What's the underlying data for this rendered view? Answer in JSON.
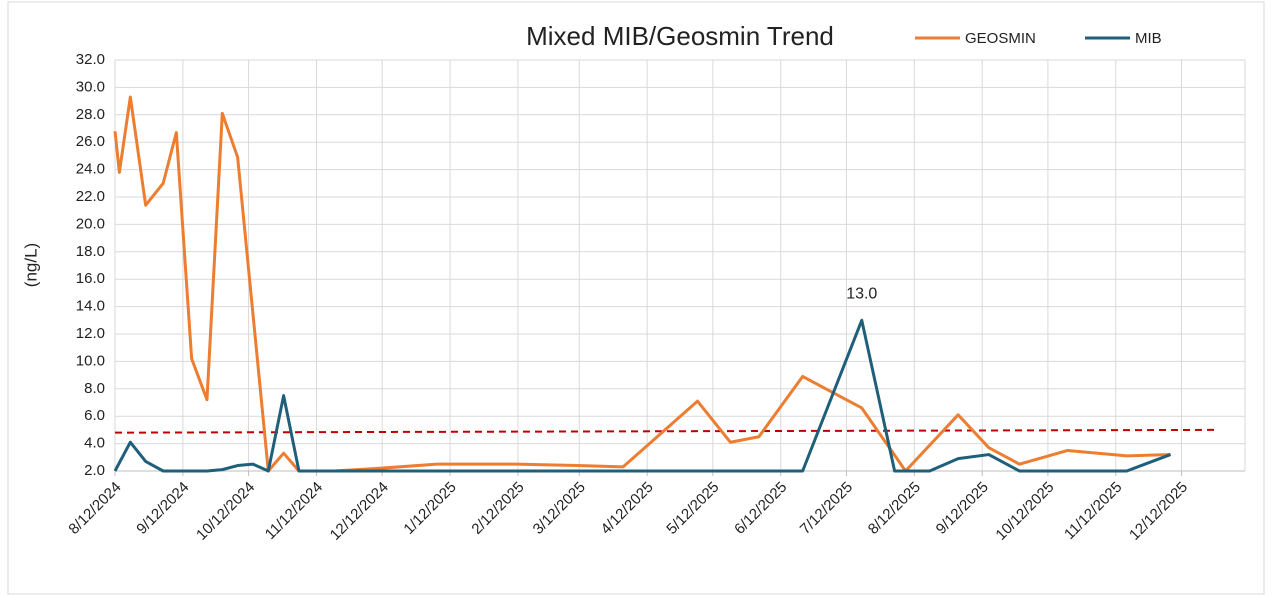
{
  "chart_data": {
    "type": "line",
    "title": "Mixed MIB/Geosmin Trend",
    "y_label": "(ng/L)",
    "grid": true,
    "legend": "top-right",
    "xlim": [
      "2024-08-12",
      "2026-01-10"
    ],
    "xticks": [
      {
        "value": "2024-08-12",
        "label": "8/12/2024"
      },
      {
        "value": "2024-09-12",
        "label": "9/12/2024"
      },
      {
        "value": "2024-10-12",
        "label": "10/12/2024"
      },
      {
        "value": "2024-11-12",
        "label": "11/12/2024"
      },
      {
        "value": "2024-12-12",
        "label": "12/12/2024"
      },
      {
        "value": "2025-01-12",
        "label": "1/12/2025"
      },
      {
        "value": "2025-02-12",
        "label": "2/12/2025"
      },
      {
        "value": "2025-03-12",
        "label": "3/12/2025"
      },
      {
        "value": "2025-04-12",
        "label": "4/12/2025"
      },
      {
        "value": "2025-05-12",
        "label": "5/12/2025"
      },
      {
        "value": "2025-06-12",
        "label": "6/12/2025"
      },
      {
        "value": "2025-07-12",
        "label": "7/12/2025"
      },
      {
        "value": "2025-08-12",
        "label": "8/12/2025"
      },
      {
        "value": "2025-09-12",
        "label": "9/12/2025"
      },
      {
        "value": "2025-10-12",
        "label": "10/12/2025"
      },
      {
        "value": "2025-11-12",
        "label": "11/12/2025"
      },
      {
        "value": "2025-12-12",
        "label": "12/12/2025"
      }
    ],
    "ylim": [
      2,
      32
    ],
    "yticks": [
      {
        "value": 2,
        "label": "2.0"
      },
      {
        "value": 4,
        "label": "4.0"
      },
      {
        "value": 6,
        "label": "6.0"
      },
      {
        "value": 8,
        "label": "8.0"
      },
      {
        "value": 10,
        "label": "10.0"
      },
      {
        "value": 12,
        "label": "12.0"
      },
      {
        "value": 14,
        "label": "14.0"
      },
      {
        "value": 16,
        "label": "16.0"
      },
      {
        "value": 18,
        "label": "18.0"
      },
      {
        "value": 20,
        "label": "20.0"
      },
      {
        "value": 22,
        "label": "22.0"
      },
      {
        "value": 24,
        "label": "24.0"
      },
      {
        "value": 26,
        "label": "26.0"
      },
      {
        "value": 28,
        "label": "28.0"
      },
      {
        "value": 30,
        "label": "30.0"
      },
      {
        "value": 32,
        "label": "32.0"
      }
    ],
    "series": [
      {
        "name": "GEOSMIN",
        "color": "#ed7d31",
        "x": [
          "2024-08-12",
          "2024-08-14",
          "2024-08-19",
          "2024-08-26",
          "2024-09-03",
          "2024-09-09",
          "2024-09-16",
          "2024-09-23",
          "2024-09-30",
          "2024-10-07",
          "2024-10-21",
          "2024-10-28",
          "2024-11-04",
          "2024-11-20",
          "2024-12-11",
          "2025-01-06",
          "2025-02-11",
          "2025-03-11",
          "2025-04-01",
          "2025-05-05",
          "2025-05-20",
          "2025-06-02",
          "2025-06-22",
          "2025-07-19",
          "2025-08-08",
          "2025-09-01",
          "2025-09-15",
          "2025-09-29",
          "2025-10-21",
          "2025-11-17",
          "2025-12-07"
        ],
        "values": [
          26.8,
          23.8,
          29.3,
          21.4,
          23.0,
          26.7,
          10.2,
          7.2,
          28.1,
          24.9,
          2.0,
          3.3,
          2.0,
          2.0,
          2.2,
          2.5,
          2.5,
          2.4,
          2.3,
          7.1,
          4.1,
          4.5,
          8.9,
          6.6,
          2.0,
          6.1,
          3.7,
          2.5,
          3.5,
          3.1,
          3.2
        ]
      },
      {
        "name": "MIB",
        "color": "#1f5f7a",
        "x": [
          "2024-08-12",
          "2024-08-19",
          "2024-08-26",
          "2024-09-03",
          "2024-09-23",
          "2024-09-30",
          "2024-10-07",
          "2024-10-14",
          "2024-10-21",
          "2024-10-28",
          "2024-11-04",
          "2025-06-22",
          "2025-07-19",
          "2025-08-03",
          "2025-08-19",
          "2025-09-01",
          "2025-09-15",
          "2025-09-29",
          "2025-11-17",
          "2025-12-07"
        ],
        "values": [
          2.0,
          4.1,
          2.7,
          2.0,
          2.0,
          2.1,
          2.4,
          2.5,
          2.0,
          7.5,
          2.0,
          2.0,
          13.0,
          2.0,
          2.0,
          2.9,
          3.2,
          2.0,
          2.0,
          3.2
        ],
        "value_labels": {
          "12": "13.0"
        }
      }
    ],
    "reference_line": {
      "color": "#c00000",
      "x": [
        "2024-08-12",
        "2025-12-27"
      ],
      "values": [
        4.8,
        5.0
      ]
    }
  }
}
